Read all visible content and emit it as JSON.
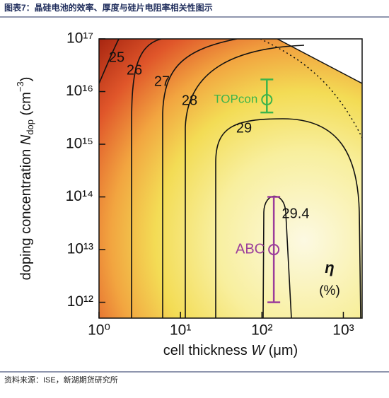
{
  "title": "图表7：晶硅电池的效率、厚度与硅片电阻率相关性图示",
  "source": "资料来源：ISE，新湖期货研究所",
  "chart_data": {
    "type": "contour",
    "x_label": [
      "cell thickness ",
      "W",
      " (μm)"
    ],
    "y_label": [
      "doping concentration ",
      "N",
      "dop",
      " (cm",
      "−3",
      ")"
    ],
    "log_x": true,
    "log_y": true,
    "xlim": [
      1,
      1700
    ],
    "ylim": [
      500000000000.0,
      1e+17
    ],
    "xticks": [
      {
        "value": 1,
        "label": "10⁰"
      },
      {
        "value": 10,
        "label": "10¹"
      },
      {
        "value": 100,
        "label": "10²"
      },
      {
        "value": 1000,
        "label": "10³"
      }
    ],
    "yticks": [
      {
        "value": 1000000000000.0,
        "label": "10¹²"
      },
      {
        "value": 10000000000000.0,
        "label": "10¹³"
      },
      {
        "value": 100000000000000.0,
        "label": "10¹⁴"
      },
      {
        "value": 1000000000000000.0,
        "label": "10¹⁵"
      },
      {
        "value": 1e+16,
        "label": "10¹⁶"
      },
      {
        "value": 1e+17,
        "label": "10¹⁷"
      }
    ],
    "contour_levels": [
      25,
      26,
      27,
      28,
      29,
      29.4
    ],
    "colorbar_label": [
      "η",
      "(%)"
    ],
    "series": [
      {
        "name": "TOPcon",
        "color": "#3cb44b",
        "x": [
          115
        ],
        "y": [
          7000000000000000.0
        ],
        "y_low": [
          4000000000000000.0
        ],
        "y_high": [
          1.7e+16
        ]
      },
      {
        "name": "ABC",
        "color": "#9b3d9b",
        "x": [
          140
        ],
        "y": [
          10000000000000.0
        ],
        "y_low": [
          1000000000000.0
        ],
        "y_high": [
          100000000000000.0
        ]
      }
    ]
  }
}
